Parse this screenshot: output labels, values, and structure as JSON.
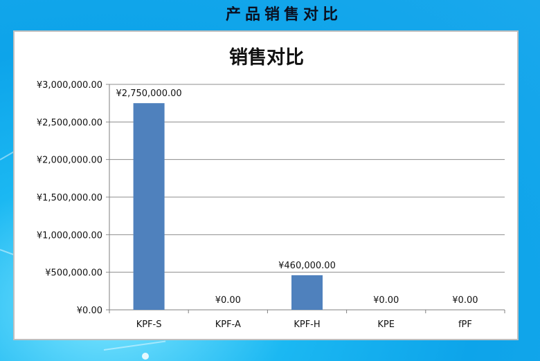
{
  "page": {
    "title": "产品销售对比"
  },
  "chart_data": {
    "type": "bar",
    "title": "销售对比",
    "categories": [
      "KPF-S",
      "KPF-A",
      "KPF-H",
      "KPE",
      "fPF"
    ],
    "values": [
      2750000,
      0,
      460000,
      0,
      0
    ],
    "data_labels": [
      "¥2,750,000.00",
      "¥0.00",
      "¥460,000.00",
      "¥0.00",
      "¥0.00"
    ],
    "yticks": [
      0,
      500000,
      1000000,
      1500000,
      2000000,
      2500000,
      3000000
    ],
    "ytick_labels": [
      "¥0.00",
      "¥500,000.00",
      "¥1,000,000.00",
      "¥1,500,000.00",
      "¥2,000,000.00",
      "¥2,500,000.00",
      "¥3,000,000.00"
    ],
    "ylim": [
      0,
      3000000
    ],
    "grid": true,
    "legend": "none",
    "bar_color": "#4f81bd"
  }
}
